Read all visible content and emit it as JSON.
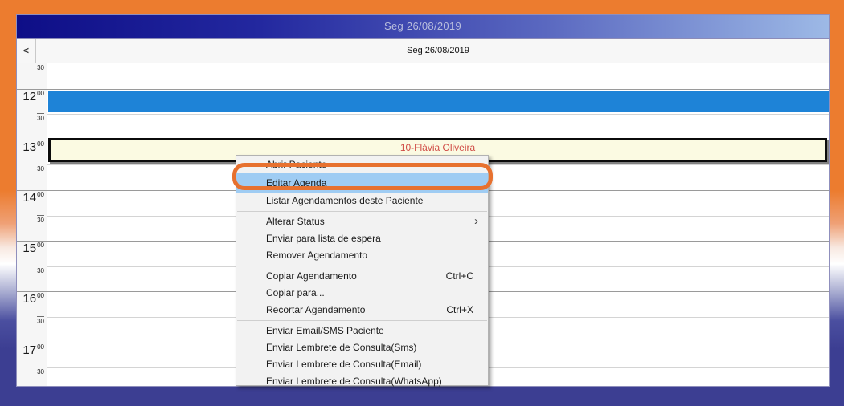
{
  "title_bar": {
    "text": "Seg 26/08/2019"
  },
  "header": {
    "back_icon": "<",
    "day_label": "Seg 26/08/2019"
  },
  "time_rows": [
    {
      "min": "30"
    },
    {
      "hour": "12",
      "min": "00"
    },
    {
      "min": "30"
    },
    {
      "hour": "13",
      "min": "00"
    },
    {
      "min": "30"
    },
    {
      "hour": "14",
      "min": "00"
    },
    {
      "min": "30"
    },
    {
      "hour": "15",
      "min": "00"
    },
    {
      "min": "30"
    },
    {
      "hour": "16",
      "min": "00"
    },
    {
      "min": "30"
    },
    {
      "hour": "17",
      "min": "00"
    },
    {
      "min": "30"
    }
  ],
  "appointments": [
    {
      "time": "12:00",
      "label": "",
      "color": "#1e83d7"
    },
    {
      "time": "13:00",
      "label": "10-Flávia Oliveira",
      "color": "#fbfae2",
      "text_color": "#d04b45"
    }
  ],
  "context_menu": {
    "items": [
      {
        "label": "Abrir Paciente"
      },
      {
        "label": "Editar Agenda",
        "highlighted": true
      },
      {
        "label": "Listar Agendamentos deste Paciente"
      },
      {
        "label": "Alterar Status",
        "submenu_arrow": "›"
      },
      {
        "label": "Enviar para lista de espera"
      },
      {
        "label": "Remover Agendamento"
      },
      {
        "label": "Copiar Agendamento",
        "shortcut": "Ctrl+C"
      },
      {
        "label": "Copiar para..."
      },
      {
        "label": "Recortar Agendamento",
        "shortcut": "Ctrl+X"
      },
      {
        "label": "Enviar Email/SMS Paciente"
      },
      {
        "label": "Enviar Lembrete de Consulta(Sms)"
      },
      {
        "label": "Enviar Lembrete de Consulta(Email)"
      },
      {
        "label": "Enviar Lembrete de Consulta(WhatsApp)"
      }
    ]
  },
  "colors": {
    "highlight_blue": "#9fccf3",
    "annotation_orange": "#e7712f",
    "appointment_blue": "#1e83d7",
    "appointment_cream": "#fbfae2",
    "patient_text_red": "#d04b45",
    "titlebar_dark": "#0e0e87",
    "titlebar_light": "#9db9e6",
    "background_orange": "#ec7c2f",
    "background_navy": "#3c3e92"
  }
}
